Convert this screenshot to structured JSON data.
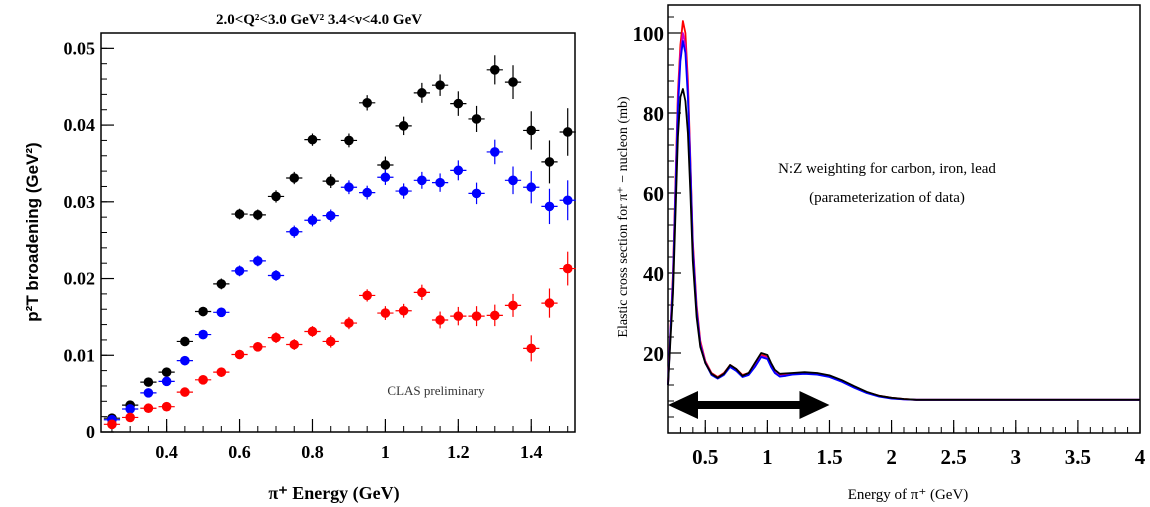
{
  "chart_data": [
    {
      "type": "scatter",
      "title": "2.0<Q²<3.0 GeV²    3.4<ν<4.0 GeV",
      "xlabel": "π⁺ Energy (GeV)",
      "ylabel": "p²T broadening (GeV²)",
      "xlim": [
        0.22,
        1.52
      ],
      "ylim": [
        0,
        0.052
      ],
      "x_ticks": [
        0.4,
        0.6,
        0.8,
        1.0,
        1.2,
        1.4
      ],
      "x_tick_labels": [
        "0.4",
        "0.6",
        "0.8",
        "1",
        "1.2",
        "1.4"
      ],
      "y_ticks": [
        0,
        0.01,
        0.02,
        0.03,
        0.04,
        0.05
      ],
      "y_tick_labels": [
        "0",
        "0.01",
        "0.02",
        "0.03",
        "0.04",
        "0.05"
      ],
      "annotation": "CLAS preliminary",
      "grid": false,
      "legend": "none",
      "x": [
        0.25,
        0.3,
        0.35,
        0.4,
        0.45,
        0.5,
        0.55,
        0.6,
        0.65,
        0.7,
        0.75,
        0.8,
        0.85,
        0.9,
        0.95,
        1.0,
        1.05,
        1.1,
        1.15,
        1.2,
        1.25,
        1.3,
        1.35,
        1.4,
        1.45,
        1.5
      ],
      "series": [
        {
          "color": "#000000",
          "values": [
            0.0018,
            0.0035,
            0.0065,
            0.0078,
            0.0118,
            0.0157,
            0.0193,
            0.0284,
            0.0283,
            0.0307,
            0.0331,
            0.0381,
            0.0327,
            0.038,
            0.0429,
            0.0348,
            0.0399,
            0.0442,
            0.0452,
            0.0428,
            0.0408,
            0.0472,
            0.0456,
            0.0393,
            0.0352,
            0.0391
          ],
          "errors": [
            0.0004,
            0.0004,
            0.0005,
            0.0005,
            0.0006,
            0.0006,
            0.0007,
            0.0007,
            0.0007,
            0.0008,
            0.0008,
            0.0008,
            0.0009,
            0.0009,
            0.001,
            0.0011,
            0.0012,
            0.0013,
            0.0014,
            0.0016,
            0.0017,
            0.0019,
            0.0022,
            0.0025,
            0.0028,
            0.0031
          ]
        },
        {
          "color": "#0000ff",
          "values": [
            0.0016,
            0.003,
            0.0051,
            0.0066,
            0.0093,
            0.0127,
            0.0156,
            0.021,
            0.0223,
            0.0204,
            0.0261,
            0.0276,
            0.0282,
            0.0319,
            0.0312,
            0.0332,
            0.0314,
            0.0328,
            0.0325,
            0.0341,
            0.0311,
            0.0365,
            0.0328,
            0.0319,
            0.0294,
            0.0302
          ],
          "errors": [
            0.0004,
            0.0004,
            0.0005,
            0.0005,
            0.0005,
            0.0006,
            0.0006,
            0.0007,
            0.0007,
            0.0007,
            0.0008,
            0.0008,
            0.0008,
            0.0009,
            0.0009,
            0.001,
            0.001,
            0.0011,
            0.0012,
            0.0013,
            0.0014,
            0.0016,
            0.0018,
            0.0021,
            0.0023,
            0.0026
          ]
        },
        {
          "color": "#ff0000",
          "values": [
            0.001,
            0.0019,
            0.0031,
            0.0033,
            0.0052,
            0.0068,
            0.0078,
            0.0101,
            0.0111,
            0.0123,
            0.0114,
            0.0131,
            0.0118,
            0.0142,
            0.0178,
            0.0155,
            0.0158,
            0.0182,
            0.0146,
            0.0151,
            0.0151,
            0.0152,
            0.0165,
            0.0109,
            0.0168,
            0.0213
          ],
          "errors": [
            0.0004,
            0.0004,
            0.0004,
            0.0005,
            0.0005,
            0.0005,
            0.0006,
            0.0006,
            0.0006,
            0.0007,
            0.0007,
            0.0007,
            0.0008,
            0.0008,
            0.0008,
            0.0009,
            0.0009,
            0.001,
            0.0011,
            0.0012,
            0.0013,
            0.0014,
            0.0015,
            0.0017,
            0.0019,
            0.0022
          ]
        }
      ]
    },
    {
      "type": "line",
      "xlabel": "Energy of π⁺ (GeV)",
      "ylabel": "Elastic cross section for π⁺ − nucleon (mb)",
      "xlim": [
        0.2,
        4.0
      ],
      "ylim": [
        0,
        107
      ],
      "x_ticks": [
        0.5,
        1,
        1.5,
        2,
        2.5,
        3,
        3.5,
        4
      ],
      "x_tick_labels": [
        "0.5",
        "1",
        "1.5",
        "2",
        "2.5",
        "3",
        "3.5",
        "4"
      ],
      "y_ticks": [
        20,
        40,
        60,
        80,
        100
      ],
      "y_tick_labels": [
        "20",
        "40",
        "60",
        "80",
        "100"
      ],
      "annotation_lines": [
        "N:Z weighting for carbon, iron, lead",
        "(parameterization of data)"
      ],
      "arrow_range": [
        0.2,
        1.5
      ],
      "arrow_y": 7,
      "grid": false,
      "legend": "none",
      "x": [
        0.2,
        0.24,
        0.28,
        0.3,
        0.32,
        0.34,
        0.36,
        0.38,
        0.4,
        0.43,
        0.46,
        0.5,
        0.55,
        0.6,
        0.65,
        0.7,
        0.75,
        0.8,
        0.85,
        0.9,
        0.95,
        1.0,
        1.03,
        1.06,
        1.1,
        1.15,
        1.2,
        1.3,
        1.4,
        1.5,
        1.6,
        1.7,
        1.8,
        1.9,
        2.0,
        2.1,
        2.2,
        2.3,
        2.5,
        3.0,
        3.5,
        4.0
      ],
      "series": [
        {
          "color": "#ff0000",
          "values": [
            12,
            40,
            85,
            97,
            103,
            100,
            88,
            68,
            48,
            32,
            23,
            18,
            15,
            14,
            15,
            17,
            16,
            14.5,
            15,
            17,
            19.5,
            19,
            17,
            15.5,
            14.5,
            14.6,
            14.8,
            15,
            14.8,
            14.2,
            13,
            11.5,
            10.2,
            9.3,
            8.8,
            8.5,
            8.3,
            8.3,
            8.3,
            8.3,
            8.3,
            8.3
          ]
        },
        {
          "color": "#cc00cc",
          "values": [
            12,
            39,
            83,
            95,
            100,
            97,
            86,
            67,
            47,
            31,
            22.5,
            17.8,
            14.8,
            13.8,
            14.8,
            16.8,
            15.8,
            14.3,
            14.8,
            16.8,
            19.2,
            18.8,
            16.8,
            15.3,
            14.3,
            14.4,
            14.7,
            14.9,
            14.7,
            14.1,
            12.9,
            11.4,
            10.1,
            9.2,
            8.7,
            8.4,
            8.3,
            8.3,
            8.3,
            8.3,
            8.3,
            8.3
          ]
        },
        {
          "color": "#0000ff",
          "values": [
            12,
            38,
            81,
            93,
            98,
            95,
            84,
            66,
            46,
            30.5,
            22,
            17.5,
            14.5,
            13.6,
            14.5,
            16.5,
            15.5,
            14,
            14.5,
            16.5,
            19,
            18.5,
            16.5,
            15,
            14.1,
            14.3,
            14.6,
            14.8,
            14.6,
            14,
            12.8,
            11.3,
            10,
            9.1,
            8.6,
            8.4,
            8.3,
            8.3,
            8.3,
            8.3,
            8.3,
            8.3
          ]
        },
        {
          "color": "#000000",
          "values": [
            12,
            35,
            74,
            84,
            86,
            83,
            75,
            60,
            43,
            29,
            21.5,
            17.5,
            14.8,
            13.8,
            14.8,
            17,
            16,
            14.3,
            15,
            17.5,
            20,
            19.5,
            17.5,
            15.8,
            14.8,
            14.9,
            15,
            15.2,
            15,
            14.4,
            13.2,
            11.7,
            10.3,
            9.3,
            8.8,
            8.5,
            8.3,
            8.3,
            8.3,
            8.3,
            8.3,
            8.3
          ]
        }
      ]
    }
  ]
}
